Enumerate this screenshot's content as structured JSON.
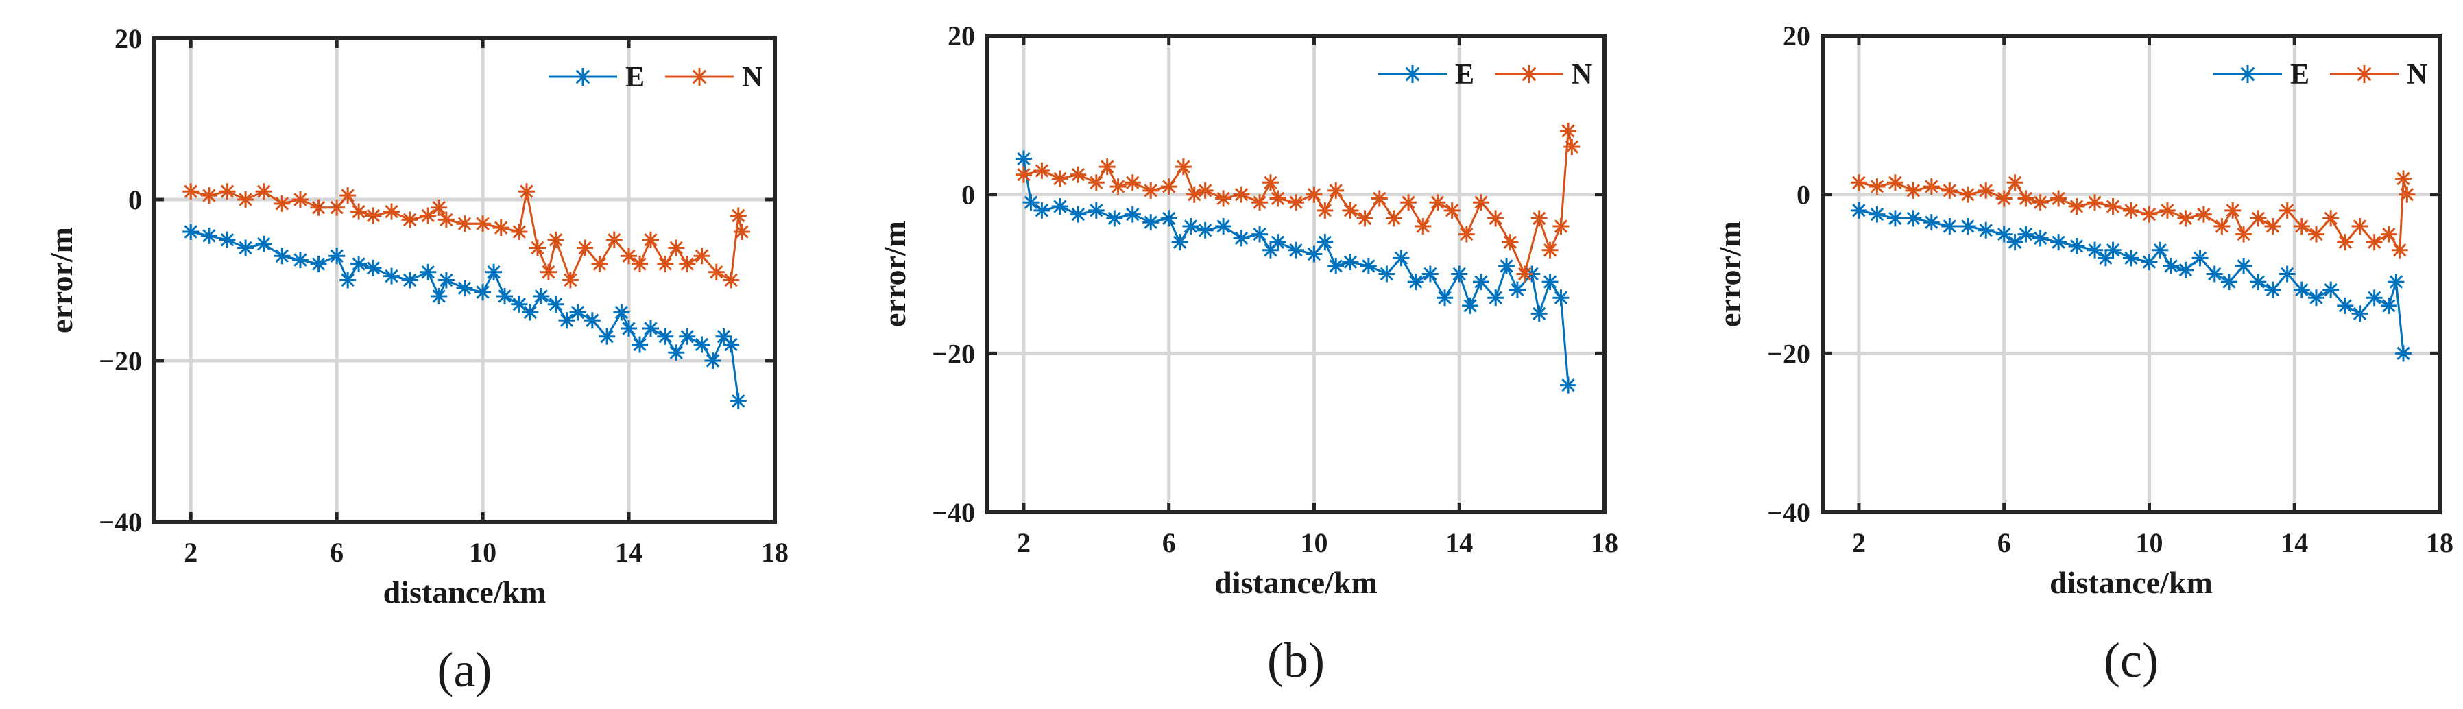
{
  "colors": {
    "E": "#0072BD",
    "N": "#D95319",
    "axis": "#262626",
    "grid": "#d6d6d6"
  },
  "chart_data": [
    {
      "type": "line",
      "panel": "(a)",
      "caption_open": "(",
      "caption_letter": "a",
      "caption_close": ")",
      "xlabel": "distance/km",
      "ylabel": "error/m",
      "xlim": [
        1,
        18
      ],
      "ylim": [
        -40,
        20
      ],
      "xticks": [
        2,
        6,
        10,
        14,
        18
      ],
      "yticks": [
        -40,
        -20,
        0,
        20
      ],
      "xtick_labels": [
        "2",
        "6",
        "10",
        "14",
        "18"
      ],
      "ytick_labels": [
        "−40",
        "−20",
        "0",
        "20"
      ],
      "grid": true,
      "legend": {
        "position": "top-right",
        "entries": [
          "E",
          "N"
        ]
      },
      "series": [
        {
          "name": "E",
          "marker": "*",
          "points": [
            [
              2,
              -4
            ],
            [
              2.5,
              -4.5
            ],
            [
              3,
              -5
            ],
            [
              3.5,
              -6
            ],
            [
              4,
              -5.5
            ],
            [
              4.5,
              -7
            ],
            [
              5,
              -7.5
            ],
            [
              5.5,
              -8
            ],
            [
              6,
              -7
            ],
            [
              6.3,
              -10
            ],
            [
              6.6,
              -8
            ],
            [
              7,
              -8.5
            ],
            [
              7.5,
              -9.5
            ],
            [
              8,
              -10
            ],
            [
              8.5,
              -9
            ],
            [
              8.8,
              -12
            ],
            [
              9,
              -10
            ],
            [
              9.5,
              -11
            ],
            [
              10,
              -11.5
            ],
            [
              10.3,
              -9
            ],
            [
              10.6,
              -12
            ],
            [
              11,
              -13
            ],
            [
              11.3,
              -14
            ],
            [
              11.6,
              -12
            ],
            [
              12,
              -13
            ],
            [
              12.3,
              -15
            ],
            [
              12.6,
              -14
            ],
            [
              13,
              -15
            ],
            [
              13.4,
              -17
            ],
            [
              13.8,
              -14
            ],
            [
              14,
              -16
            ],
            [
              14.3,
              -18
            ],
            [
              14.6,
              -16
            ],
            [
              15,
              -17
            ],
            [
              15.3,
              -19
            ],
            [
              15.6,
              -17
            ],
            [
              16,
              -18
            ],
            [
              16.3,
              -20
            ],
            [
              16.6,
              -17
            ],
            [
              16.8,
              -18
            ],
            [
              17,
              -25
            ]
          ]
        },
        {
          "name": "N",
          "marker": "*",
          "points": [
            [
              2,
              1
            ],
            [
              2.5,
              0.5
            ],
            [
              3,
              1
            ],
            [
              3.5,
              0
            ],
            [
              4,
              1
            ],
            [
              4.5,
              -0.5
            ],
            [
              5,
              0
            ],
            [
              5.5,
              -1
            ],
            [
              6,
              -1
            ],
            [
              6.3,
              0.5
            ],
            [
              6.6,
              -1.5
            ],
            [
              7,
              -2
            ],
            [
              7.5,
              -1.5
            ],
            [
              8,
              -2.5
            ],
            [
              8.5,
              -2
            ],
            [
              8.8,
              -1
            ],
            [
              9,
              -2.5
            ],
            [
              9.5,
              -3
            ],
            [
              10,
              -3
            ],
            [
              10.5,
              -3.5
            ],
            [
              11,
              -4
            ],
            [
              11.2,
              1
            ],
            [
              11.5,
              -6
            ],
            [
              11.8,
              -9
            ],
            [
              12,
              -5
            ],
            [
              12.4,
              -10
            ],
            [
              12.8,
              -6
            ],
            [
              13.2,
              -8
            ],
            [
              13.6,
              -5
            ],
            [
              14,
              -7
            ],
            [
              14.3,
              -8
            ],
            [
              14.6,
              -5
            ],
            [
              15,
              -8
            ],
            [
              15.3,
              -6
            ],
            [
              15.6,
              -8
            ],
            [
              16,
              -7
            ],
            [
              16.4,
              -9
            ],
            [
              16.8,
              -10
            ],
            [
              17,
              -2
            ],
            [
              17.1,
              -4
            ]
          ]
        }
      ]
    },
    {
      "type": "line",
      "panel": "(b)",
      "caption_open": "(",
      "caption_letter": "b",
      "caption_close": ")",
      "xlabel": "distance/km",
      "ylabel": "error/m",
      "xlim": [
        1,
        18
      ],
      "ylim": [
        -40,
        20
      ],
      "xticks": [
        2,
        6,
        10,
        14,
        18
      ],
      "yticks": [
        -40,
        -20,
        0,
        20
      ],
      "xtick_labels": [
        "2",
        "6",
        "10",
        "14",
        "18"
      ],
      "ytick_labels": [
        "−40",
        "−20",
        "0",
        "20"
      ],
      "grid": true,
      "legend": {
        "position": "top-right",
        "entries": [
          "E",
          "N"
        ]
      },
      "series": [
        {
          "name": "E",
          "marker": "*",
          "points": [
            [
              2,
              4.5
            ],
            [
              2.2,
              -1
            ],
            [
              2.5,
              -2
            ],
            [
              3,
              -1.5
            ],
            [
              3.5,
              -2.5
            ],
            [
              4,
              -2
            ],
            [
              4.5,
              -3
            ],
            [
              5,
              -2.5
            ],
            [
              5.5,
              -3.5
            ],
            [
              6,
              -3
            ],
            [
              6.3,
              -6
            ],
            [
              6.6,
              -4
            ],
            [
              7,
              -4.5
            ],
            [
              7.5,
              -4
            ],
            [
              8,
              -5.5
            ],
            [
              8.5,
              -5
            ],
            [
              8.8,
              -7
            ],
            [
              9,
              -6
            ],
            [
              9.5,
              -7
            ],
            [
              10,
              -7.5
            ],
            [
              10.3,
              -6
            ],
            [
              10.6,
              -9
            ],
            [
              11,
              -8.5
            ],
            [
              11.5,
              -9
            ],
            [
              12,
              -10
            ],
            [
              12.4,
              -8
            ],
            [
              12.8,
              -11
            ],
            [
              13.2,
              -10
            ],
            [
              13.6,
              -13
            ],
            [
              14,
              -10
            ],
            [
              14.3,
              -14
            ],
            [
              14.6,
              -11
            ],
            [
              15,
              -13
            ],
            [
              15.3,
              -9
            ],
            [
              15.6,
              -12
            ],
            [
              16,
              -10
            ],
            [
              16.2,
              -15
            ],
            [
              16.5,
              -11
            ],
            [
              16.8,
              -13
            ],
            [
              17,
              -24
            ]
          ]
        },
        {
          "name": "N",
          "marker": "*",
          "points": [
            [
              2,
              2.5
            ],
            [
              2.5,
              3
            ],
            [
              3,
              2
            ],
            [
              3.5,
              2.5
            ],
            [
              4,
              1.5
            ],
            [
              4.3,
              3.5
            ],
            [
              4.6,
              1
            ],
            [
              5,
              1.5
            ],
            [
              5.5,
              0.5
            ],
            [
              6,
              1
            ],
            [
              6.4,
              3.5
            ],
            [
              6.7,
              0
            ],
            [
              7,
              0.5
            ],
            [
              7.5,
              -0.5
            ],
            [
              8,
              0
            ],
            [
              8.5,
              -1
            ],
            [
              8.8,
              1.5
            ],
            [
              9,
              -0.5
            ],
            [
              9.5,
              -1
            ],
            [
              10,
              0
            ],
            [
              10.3,
              -2
            ],
            [
              10.6,
              0.5
            ],
            [
              11,
              -2
            ],
            [
              11.4,
              -3
            ],
            [
              11.8,
              -0.5
            ],
            [
              12.2,
              -3
            ],
            [
              12.6,
              -1
            ],
            [
              13,
              -4
            ],
            [
              13.4,
              -1
            ],
            [
              13.8,
              -2
            ],
            [
              14.2,
              -5
            ],
            [
              14.6,
              -1
            ],
            [
              15,
              -3
            ],
            [
              15.4,
              -6
            ],
            [
              15.8,
              -10
            ],
            [
              16.2,
              -3
            ],
            [
              16.5,
              -7
            ],
            [
              16.8,
              -4
            ],
            [
              17,
              8
            ],
            [
              17.1,
              6
            ]
          ]
        }
      ]
    },
    {
      "type": "line",
      "panel": "(c)",
      "caption_open": "(",
      "caption_letter": "c",
      "caption_close": ")",
      "xlabel": "distance/km",
      "ylabel": "error/m",
      "xlim": [
        1,
        18
      ],
      "ylim": [
        -40,
        20
      ],
      "xticks": [
        2,
        6,
        10,
        14,
        18
      ],
      "yticks": [
        -40,
        -20,
        0,
        20
      ],
      "xtick_labels": [
        "2",
        "6",
        "10",
        "14",
        "18"
      ],
      "ytick_labels": [
        "−40",
        "−20",
        "0",
        "20"
      ],
      "grid": true,
      "legend": {
        "position": "top-right",
        "entries": [
          "E",
          "N"
        ]
      },
      "series": [
        {
          "name": "E",
          "marker": "*",
          "points": [
            [
              2,
              -2
            ],
            [
              2.5,
              -2.5
            ],
            [
              3,
              -3
            ],
            [
              3.5,
              -3
            ],
            [
              4,
              -3.5
            ],
            [
              4.5,
              -4
            ],
            [
              5,
              -4
            ],
            [
              5.5,
              -4.5
            ],
            [
              6,
              -5
            ],
            [
              6.3,
              -6
            ],
            [
              6.6,
              -5
            ],
            [
              7,
              -5.5
            ],
            [
              7.5,
              -6
            ],
            [
              8,
              -6.5
            ],
            [
              8.5,
              -7
            ],
            [
              8.8,
              -8
            ],
            [
              9,
              -7
            ],
            [
              9.5,
              -8
            ],
            [
              10,
              -8.5
            ],
            [
              10.3,
              -7
            ],
            [
              10.6,
              -9
            ],
            [
              11,
              -9.5
            ],
            [
              11.4,
              -8
            ],
            [
              11.8,
              -10
            ],
            [
              12.2,
              -11
            ],
            [
              12.6,
              -9
            ],
            [
              13,
              -11
            ],
            [
              13.4,
              -12
            ],
            [
              13.8,
              -10
            ],
            [
              14.2,
              -12
            ],
            [
              14.6,
              -13
            ],
            [
              15,
              -12
            ],
            [
              15.4,
              -14
            ],
            [
              15.8,
              -15
            ],
            [
              16.2,
              -13
            ],
            [
              16.6,
              -14
            ],
            [
              16.8,
              -11
            ],
            [
              17,
              -20
            ]
          ]
        },
        {
          "name": "N",
          "marker": "*",
          "points": [
            [
              2,
              1.5
            ],
            [
              2.5,
              1
            ],
            [
              3,
              1.5
            ],
            [
              3.5,
              0.5
            ],
            [
              4,
              1
            ],
            [
              4.5,
              0.5
            ],
            [
              5,
              0
            ],
            [
              5.5,
              0.5
            ],
            [
              6,
              -0.5
            ],
            [
              6.3,
              1.5
            ],
            [
              6.6,
              -0.5
            ],
            [
              7,
              -1
            ],
            [
              7.5,
              -0.5
            ],
            [
              8,
              -1.5
            ],
            [
              8.5,
              -1
            ],
            [
              9,
              -1.5
            ],
            [
              9.5,
              -2
            ],
            [
              10,
              -2.5
            ],
            [
              10.5,
              -2
            ],
            [
              11,
              -3
            ],
            [
              11.5,
              -2.5
            ],
            [
              12,
              -4
            ],
            [
              12.3,
              -2
            ],
            [
              12.6,
              -5
            ],
            [
              13,
              -3
            ],
            [
              13.4,
              -4
            ],
            [
              13.8,
              -2
            ],
            [
              14.2,
              -4
            ],
            [
              14.6,
              -5
            ],
            [
              15,
              -3
            ],
            [
              15.4,
              -6
            ],
            [
              15.8,
              -4
            ],
            [
              16.2,
              -6
            ],
            [
              16.6,
              -5
            ],
            [
              16.9,
              -7
            ],
            [
              17,
              2
            ],
            [
              17.1,
              0
            ]
          ]
        }
      ]
    }
  ]
}
